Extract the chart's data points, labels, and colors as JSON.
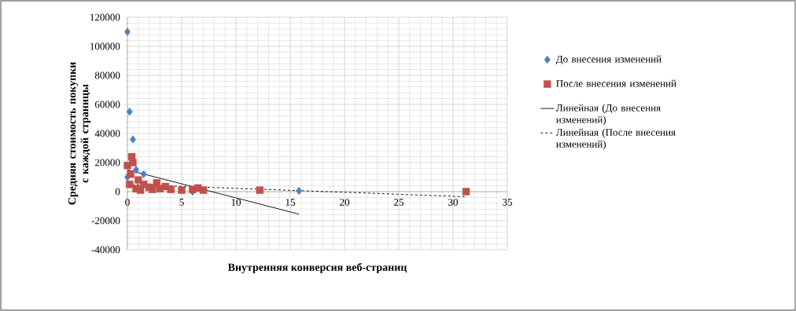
{
  "chart_data": {
    "type": "scatter",
    "xlabel": "Внутренняя конверсия веб-страниц",
    "ylabel": "Средняя стоимость покупки с каждой страницы",
    "xlim": [
      0,
      35
    ],
    "ylim": [
      -40000,
      120000
    ],
    "xticks": [
      0,
      5,
      10,
      15,
      20,
      25,
      30,
      35
    ],
    "yticks": [
      -40000,
      -20000,
      0,
      20000,
      40000,
      60000,
      80000,
      100000,
      120000
    ],
    "grid": true,
    "legend": "right",
    "series": [
      {
        "name": "До внесения изменений",
        "marker": "diamond",
        "color": "#4f81bd",
        "x": [
          0,
          0.2,
          0.5,
          0,
          0.8,
          1.5,
          6,
          15.8
        ],
        "values": [
          110000,
          55000,
          36000,
          10000,
          15000,
          12000,
          0,
          500
        ]
      },
      {
        "name": "После внесения изменений",
        "marker": "square",
        "color": "#c0504d",
        "x": [
          0,
          0.4,
          0.5,
          0.3,
          0.2,
          1,
          1.5,
          2,
          2.7,
          3,
          3.5,
          4,
          5,
          6,
          6.5,
          7,
          0.8,
          1.2,
          2.3,
          12.2,
          31.2
        ],
        "values": [
          18000,
          24000,
          20000,
          12000,
          5000,
          8000,
          5000,
          3000,
          6000,
          2000,
          3500,
          1500,
          1000,
          1500,
          2500,
          1000,
          2000,
          1000,
          1500,
          1000,
          0
        ]
      },
      {
        "name": "Линейная (До внесения изменений)",
        "type": "line",
        "marker": "none",
        "line_style": "solid",
        "color": "#000000",
        "x": [
          0,
          15.8
        ],
        "values": [
          15000,
          -15500
        ]
      },
      {
        "name": "Линейная (После внесения изменений)",
        "type": "line",
        "marker": "none",
        "line_style": "dashed",
        "color": "#000000",
        "x": [
          0,
          31.2
        ],
        "values": [
          5000,
          -3500
        ]
      }
    ]
  }
}
